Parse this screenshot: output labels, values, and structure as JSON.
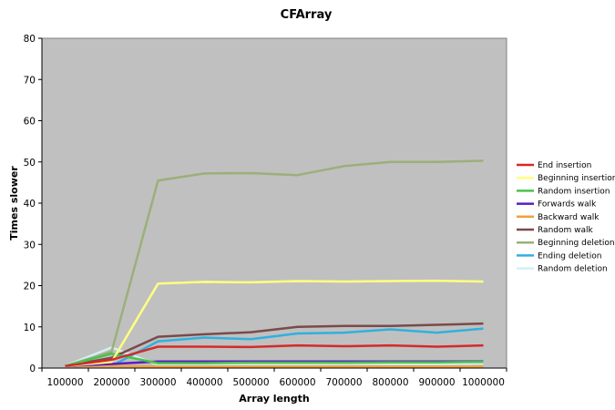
{
  "chart_data": {
    "type": "line",
    "title": "CFArray",
    "xlabel": "Array length",
    "ylabel": "Times slower",
    "ylim": [
      0,
      80
    ],
    "yticks": [
      0,
      10,
      20,
      30,
      40,
      50,
      60,
      70,
      80
    ],
    "x": [
      "100000",
      "200000",
      "300000",
      "400000",
      "500000",
      "600000",
      "700000",
      "800000",
      "900000",
      "1000000"
    ],
    "grid": false,
    "legend_position": "right",
    "plot_background": "#c0c0c0",
    "series": [
      {
        "name": "End insertion",
        "color": "#d42a2a",
        "values": [
          0.5,
          2.0,
          5.2,
          5.2,
          5.1,
          5.5,
          5.3,
          5.5,
          5.2,
          5.5
        ]
      },
      {
        "name": "Beginning insertion",
        "color": "#ffff80",
        "values": [
          0.5,
          1.5,
          20.5,
          20.9,
          20.8,
          21.1,
          21.0,
          21.1,
          21.2,
          21.0
        ]
      },
      {
        "name": "Random insertion",
        "color": "#49c34b",
        "values": [
          0.5,
          3.5,
          1.2,
          1.2,
          1.3,
          1.3,
          1.3,
          1.4,
          1.4,
          1.5
        ]
      },
      {
        "name": "Forwards walk",
        "color": "#5a1dbf",
        "values": [
          0.5,
          1.0,
          1.6,
          1.6,
          1.6,
          1.6,
          1.6,
          1.6,
          1.6,
          1.6
        ]
      },
      {
        "name": "Backward walk",
        "color": "#f0a040",
        "values": [
          0.5,
          0.5,
          0.4,
          0.4,
          0.4,
          0.4,
          0.4,
          0.4,
          0.4,
          0.4
        ]
      },
      {
        "name": "Random walk",
        "color": "#7a4a4a",
        "values": [
          0.5,
          2.5,
          7.6,
          8.2,
          8.7,
          10.0,
          10.2,
          10.2,
          10.5,
          10.8
        ]
      },
      {
        "name": "Beginning deletion",
        "color": "#9ab07a",
        "values": [
          0.5,
          4.0,
          45.5,
          47.2,
          47.3,
          46.8,
          49.0,
          50.0,
          50.0,
          50.3
        ]
      },
      {
        "name": "Ending deletion",
        "color": "#30b0e0",
        "values": [
          0.5,
          0.5,
          6.5,
          7.4,
          7.0,
          8.4,
          8.6,
          9.4,
          8.6,
          9.6
        ]
      },
      {
        "name": "Random deletion",
        "color": "#d0f0f8",
        "values": [
          0.5,
          5.0,
          0.8,
          0.8,
          0.9,
          0.9,
          1.0,
          1.0,
          1.0,
          1.1
        ]
      }
    ]
  }
}
